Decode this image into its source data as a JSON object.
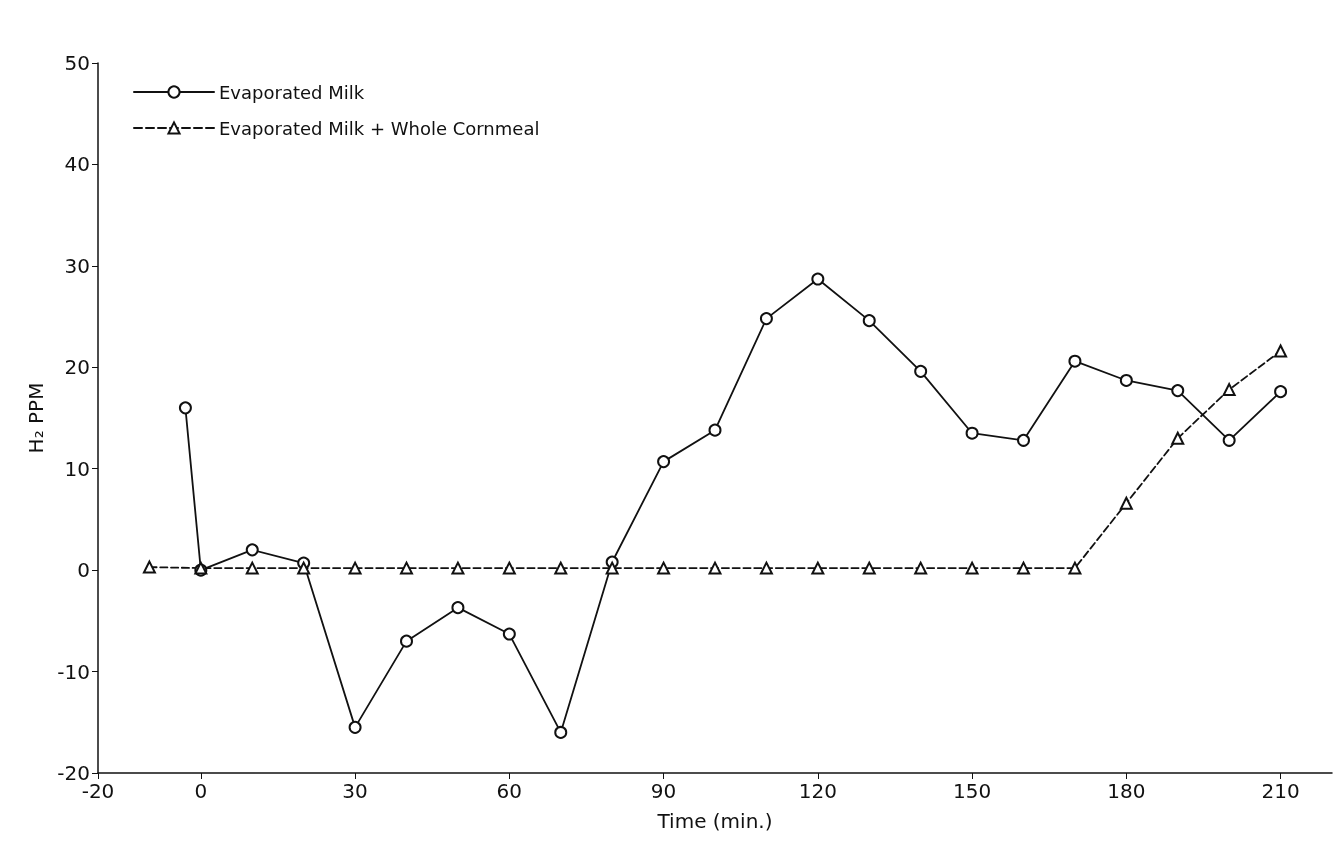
{
  "chart_data": {
    "type": "line",
    "xlabel": "Time (min.)",
    "ylabel": "H₂ PPM",
    "xlim": [
      -20,
      220
    ],
    "xticks": [
      -20,
      0,
      30,
      60,
      90,
      120,
      150,
      180,
      210
    ],
    "ylim": [
      -20,
      50
    ],
    "yticks": [
      -20,
      -10,
      0,
      10,
      20,
      30,
      40,
      50
    ],
    "grid": false,
    "legend": "top left",
    "series": [
      {
        "name": "Evaporated Milk",
        "color": "#111111",
        "marker": "circle",
        "line_style": "solid",
        "x": [
          -3,
          0,
          10,
          20,
          30,
          40,
          50,
          60,
          70,
          80,
          90,
          100,
          110,
          120,
          130,
          140,
          150,
          160,
          170,
          180,
          190,
          200,
          210
        ],
        "values": [
          16,
          0,
          2,
          0.7,
          -15.5,
          -7,
          -3.7,
          -6.3,
          -16,
          0.8,
          10.7,
          13.8,
          24.8,
          28.7,
          24.6,
          19.6,
          13.5,
          12.8,
          20.6,
          18.7,
          17.7,
          12.8,
          17.6
        ]
      },
      {
        "name": "Evaporated Milk + Whole Cornmeal",
        "color": "#111111",
        "marker": "triangle",
        "line_style": "dashed",
        "x": [
          -10,
          0,
          10,
          20,
          30,
          40,
          50,
          60,
          70,
          80,
          90,
          100,
          110,
          120,
          130,
          140,
          150,
          160,
          170,
          180,
          190,
          200,
          210
        ],
        "values": [
          0.3,
          0.2,
          0.2,
          0.2,
          0.2,
          0.2,
          0.2,
          0.2,
          0.2,
          0.2,
          0.2,
          0.2,
          0.2,
          0.2,
          0.2,
          0.2,
          0.2,
          0.2,
          0.2,
          6.6,
          13,
          17.8,
          21.6
        ]
      }
    ]
  }
}
